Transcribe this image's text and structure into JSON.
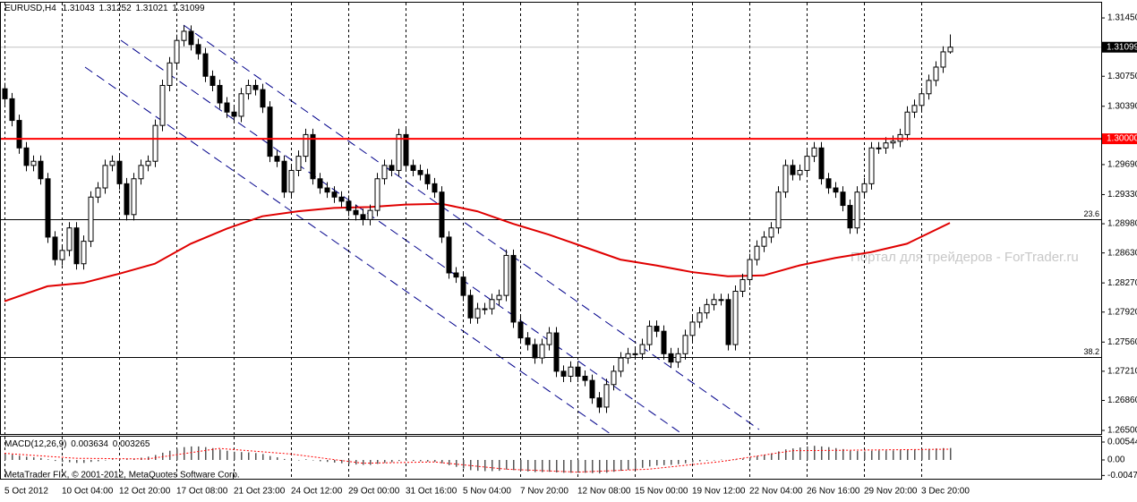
{
  "chart_data": [
    {
      "type": "candlestick",
      "title": "EURUSD,H4",
      "categories": [
        "5 Oct 2012",
        null,
        null,
        null,
        null,
        null,
        null,
        null,
        "10 Oct 04:00",
        null,
        null,
        null,
        null,
        null,
        null,
        null,
        "12 Oct 20:00",
        null,
        null,
        null,
        null,
        null,
        null,
        null,
        "17 Oct 08:00",
        null,
        null,
        null,
        null,
        null,
        null,
        null,
        "21 Oct 23:00",
        null,
        null,
        null,
        null,
        null,
        null,
        null,
        "24 Oct 12:00",
        null,
        null,
        null,
        null,
        null,
        null,
        null,
        "29 Oct 00:00",
        null,
        null,
        null,
        null,
        null,
        null,
        null,
        "31 Oct 16:00",
        null,
        null,
        null,
        null,
        null,
        null,
        null,
        "5 Nov 04:00",
        null,
        null,
        null,
        null,
        null,
        null,
        null,
        "7 Nov 20:00",
        null,
        null,
        null,
        null,
        null,
        null,
        null,
        "12 Nov 08:00",
        null,
        null,
        null,
        null,
        null,
        null,
        null,
        "15 Nov 00:00",
        null,
        null,
        null,
        null,
        null,
        null,
        null,
        "19 Nov 12:00",
        null,
        null,
        null,
        null,
        null,
        null,
        null,
        "22 Nov 04:00",
        null,
        null,
        null,
        null,
        null,
        null,
        null,
        "26 Nov 16:00",
        null,
        null,
        null,
        null,
        null,
        null,
        null,
        "29 Nov 20:00",
        null,
        null,
        null,
        null,
        null,
        null,
        null,
        "3 Dec 20:00",
        null,
        null,
        null,
        null
      ],
      "open": [
        1.306,
        1.3048,
        1.3022,
        1.2989,
        1.2968,
        1.2973,
        1.2952,
        1.2882,
        1.2855,
        1.2866,
        1.2893,
        1.285,
        1.2877,
        1.293,
        1.2941,
        1.2968,
        1.2973,
        1.2946,
        1.2909,
        1.2952,
        1.2968,
        1.2973,
        1.3016,
        1.3064,
        1.3091,
        1.3118,
        1.3129,
        1.3113,
        1.3102,
        1.3075,
        1.3064,
        1.3043,
        1.3032,
        1.3027,
        1.3054,
        1.3064,
        1.3059,
        1.3038,
        1.2979,
        1.2973,
        1.2936,
        1.2962,
        1.2979,
        1.3005,
        1.2952,
        1.2941,
        1.2936,
        1.293,
        1.2925,
        1.2914,
        1.2909,
        1.2903,
        1.2914,
        1.2952,
        1.2968,
        1.2962,
        1.3005,
        1.2968,
        1.2962,
        1.2957,
        1.2946,
        1.2936,
        1.2882,
        1.2839,
        1.2834,
        1.2812,
        1.2785,
        1.2796,
        1.2796,
        1.2807,
        1.2812,
        1.286,
        1.278,
        1.2761,
        1.2753,
        1.2737,
        1.2753,
        1.2767,
        1.2721,
        1.2715,
        1.2726,
        1.2715,
        1.271,
        1.2689,
        1.2678,
        1.2705,
        1.2721,
        1.2737,
        1.2742,
        1.2742,
        1.2753,
        1.2775,
        1.2769,
        1.2742,
        1.2732,
        1.2742,
        1.2764,
        1.278,
        1.2791,
        1.2801,
        1.2807,
        1.2807,
        1.2753,
        1.2817,
        1.2831,
        1.2855,
        1.2871,
        1.2882,
        1.2893,
        1.2936,
        1.2968,
        1.2957,
        1.2962,
        1.2979,
        1.2989,
        1.2952,
        1.2941,
        1.2936,
        1.292,
        1.2893,
        1.2936,
        1.2946,
        1.2989,
        1.2989,
        1.2995,
        1.2997,
        1.3005,
        1.3032,
        1.304,
        1.3054,
        1.307,
        1.3086,
        1.31043
      ],
      "high": [
        1.3067,
        1.3055,
        1.3029,
        1.2996,
        1.298,
        1.298,
        1.2959,
        1.2889,
        1.2873,
        1.29,
        1.29,
        1.2884,
        1.2937,
        1.2948,
        1.2975,
        1.298,
        1.298,
        1.2953,
        1.2959,
        1.2975,
        1.298,
        1.3023,
        1.3071,
        1.3098,
        1.3125,
        1.3136,
        1.3136,
        1.312,
        1.3109,
        1.3082,
        1.3071,
        1.305,
        1.3039,
        1.3061,
        1.3071,
        1.3071,
        1.3066,
        1.3045,
        1.2986,
        1.298,
        1.2969,
        1.2986,
        1.3012,
        1.3012,
        1.2959,
        1.2948,
        1.2943,
        1.2937,
        1.2932,
        1.2921,
        1.2916,
        1.2921,
        1.2959,
        1.2975,
        1.2975,
        1.3012,
        1.3012,
        1.2975,
        1.2969,
        1.2964,
        1.2953,
        1.2943,
        1.2889,
        1.2846,
        1.2841,
        1.2819,
        1.2803,
        1.2803,
        1.2814,
        1.2819,
        1.2867,
        1.2867,
        1.2787,
        1.2768,
        1.276,
        1.276,
        1.2774,
        1.2774,
        1.2728,
        1.2733,
        1.2733,
        1.2722,
        1.2717,
        1.2696,
        1.2712,
        1.2728,
        1.2744,
        1.2749,
        1.2749,
        1.276,
        1.2782,
        1.2782,
        1.2776,
        1.2749,
        1.2749,
        1.2771,
        1.2787,
        1.2798,
        1.2808,
        1.2814,
        1.2814,
        1.2814,
        1.2824,
        1.2838,
        1.2862,
        1.2878,
        1.2889,
        1.29,
        1.2943,
        1.2975,
        1.2975,
        1.2969,
        1.2986,
        1.2996,
        1.2996,
        1.2959,
        1.2948,
        1.2943,
        1.2927,
        1.2943,
        1.2953,
        1.2996,
        1.2996,
        1.3002,
        1.3004,
        1.3012,
        1.3039,
        1.3047,
        1.3061,
        1.3077,
        1.3093,
        1.3111,
        1.31252
      ],
      "low": [
        1.3041,
        1.3015,
        1.2982,
        1.2961,
        1.2961,
        1.2945,
        1.2875,
        1.2848,
        1.2848,
        1.2859,
        1.2843,
        1.2843,
        1.287,
        1.2923,
        1.2934,
        1.2961,
        1.2939,
        1.2902,
        1.2902,
        1.2945,
        1.2961,
        1.2966,
        1.3009,
        1.3057,
        1.3084,
        1.3111,
        1.3106,
        1.3095,
        1.3068,
        1.3057,
        1.3036,
        1.3025,
        1.302,
        1.302,
        1.3047,
        1.3052,
        1.3031,
        1.2972,
        1.2966,
        1.2929,
        1.2929,
        1.2955,
        1.2972,
        1.2945,
        1.2934,
        1.2929,
        1.2923,
        1.2918,
        1.2907,
        1.2902,
        1.2896,
        1.2896,
        1.2907,
        1.2945,
        1.2955,
        1.2955,
        1.2961,
        1.2955,
        1.295,
        1.2939,
        1.2929,
        1.2875,
        1.2832,
        1.2827,
        1.2805,
        1.2778,
        1.2778,
        1.2789,
        1.2789,
        1.28,
        1.2805,
        1.2773,
        1.2754,
        1.2746,
        1.273,
        1.273,
        1.2746,
        1.2714,
        1.2708,
        1.2708,
        1.2708,
        1.2703,
        1.2682,
        1.2671,
        1.2671,
        1.2698,
        1.2714,
        1.273,
        1.2735,
        1.2735,
        1.2746,
        1.2762,
        1.2735,
        1.2725,
        1.2725,
        1.2735,
        1.2757,
        1.2773,
        1.2784,
        1.2794,
        1.28,
        1.2746,
        1.2746,
        1.281,
        1.2824,
        1.2848,
        1.2864,
        1.2875,
        1.2886,
        1.2929,
        1.295,
        1.295,
        1.2955,
        1.2972,
        1.2945,
        1.2934,
        1.2929,
        1.2913,
        1.2886,
        1.2886,
        1.2929,
        1.2939,
        1.2982,
        1.2982,
        1.2988,
        1.299,
        1.2998,
        1.3025,
        1.3033,
        1.3047,
        1.3063,
        1.3079,
        1.31021
      ],
      "close": [
        1.3048,
        1.3022,
        1.2989,
        1.2968,
        1.2973,
        1.2952,
        1.2882,
        1.2855,
        1.2866,
        1.2893,
        1.285,
        1.2877,
        1.293,
        1.2941,
        1.2968,
        1.2973,
        1.2946,
        1.2909,
        1.2952,
        1.2968,
        1.2973,
        1.3016,
        1.3064,
        1.3091,
        1.3118,
        1.3129,
        1.3113,
        1.3102,
        1.3075,
        1.3064,
        1.3043,
        1.3032,
        1.3027,
        1.3054,
        1.3064,
        1.3059,
        1.3038,
        1.2979,
        1.2973,
        1.2936,
        1.2962,
        1.2979,
        1.3005,
        1.2952,
        1.2941,
        1.2936,
        1.293,
        1.2925,
        1.2914,
        1.2909,
        1.2903,
        1.2914,
        1.2952,
        1.2968,
        1.2962,
        1.3005,
        1.2968,
        1.2962,
        1.2957,
        1.2946,
        1.2936,
        1.2882,
        1.2839,
        1.2834,
        1.2812,
        1.2785,
        1.2796,
        1.2796,
        1.2807,
        1.2812,
        1.286,
        1.278,
        1.2761,
        1.2753,
        1.2737,
        1.2753,
        1.2767,
        1.2721,
        1.2715,
        1.2726,
        1.2715,
        1.271,
        1.2689,
        1.2678,
        1.2705,
        1.2721,
        1.2737,
        1.2742,
        1.2742,
        1.2753,
        1.2775,
        1.2769,
        1.2742,
        1.2732,
        1.2742,
        1.2764,
        1.278,
        1.2791,
        1.2801,
        1.2807,
        1.2807,
        1.2753,
        1.2817,
        1.2831,
        1.2855,
        1.2871,
        1.2882,
        1.2893,
        1.2936,
        1.2968,
        1.2957,
        1.2962,
        1.2979,
        1.2989,
        1.2952,
        1.2941,
        1.2936,
        1.292,
        1.2893,
        1.2936,
        1.2946,
        1.2989,
        1.2989,
        1.2995,
        1.2997,
        1.3005,
        1.3032,
        1.304,
        1.3054,
        1.307,
        1.3086,
        1.31043,
        1.31099
      ],
      "up_color": "#ffffff",
      "down_color": "#000000",
      "grid": true,
      "ylim": [
        1.26457,
        1.31633
      ],
      "yticks": [
        {
          "value": 1.3145,
          "label": "1.31450"
        },
        {
          "value": 1.3075,
          "label": "1.30750"
        },
        {
          "value": 1.3039,
          "label": "1.30390"
        },
        {
          "value": 1.2969,
          "label": "1.29690"
        },
        {
          "value": 1.2933,
          "label": "1.29330"
        },
        {
          "value": 1.2898,
          "label": "1.28980"
        },
        {
          "value": 1.2863,
          "label": "1.28630"
        },
        {
          "value": 1.2827,
          "label": "1.28270"
        },
        {
          "value": 1.2792,
          "label": "1.27920"
        },
        {
          "value": 1.2756,
          "label": "1.27560"
        },
        {
          "value": 1.2721,
          "label": "1.27210"
        },
        {
          "value": 1.2686,
          "label": "1.26860"
        },
        {
          "value": 1.265,
          "label": "1.26500"
        }
      ],
      "moving_average": {
        "color": "#e00000",
        "x": [
          0,
          6,
          11,
          16,
          21,
          26,
          31,
          36,
          41,
          46,
          51,
          56,
          61,
          66,
          71,
          76,
          81,
          86,
          91,
          96,
          101,
          106,
          111,
          116,
          121,
          126,
          132
        ],
        "values": [
          1.2805,
          1.2823,
          1.2827,
          1.2838,
          1.285,
          1.2874,
          1.2892,
          1.2907,
          1.2913,
          1.2917,
          1.2918,
          1.2921,
          1.2922,
          1.2913,
          1.2898,
          1.2885,
          1.287,
          1.2855,
          1.2848,
          1.284,
          1.2835,
          1.2836,
          1.2848,
          1.2857,
          1.2864,
          1.2874,
          1.2899
        ]
      },
      "levels": [
        {
          "value": 1.3,
          "label": "1.30000",
          "color": "#ff0000"
        }
      ],
      "fibonacci": [
        {
          "level": 23.6,
          "price": 1.2903
        },
        {
          "level": 38.2,
          "price": 1.2738
        }
      ],
      "watermark": "Портал для трейдеров - ForTrader.ru",
      "footer": "MetaTrader FIX, © 2001-2012, MetaQuotes Software Corp."
    },
    {
      "type": "macd",
      "title": "MACD(12,26,9)",
      "color": "#555555",
      "values": [
        0.0018,
        0.0016,
        0.0013,
        0.001,
        0.0008,
        0.0006,
        0.0002,
        -0.0003,
        -0.0006,
        -0.0007,
        -0.0009,
        -0.0009,
        -0.0006,
        -0.0004,
        -0.0001,
        0.0002,
        0.0003,
        0.0002,
        0.0004,
        0.0007,
        0.001,
        0.0015,
        0.0022,
        0.0028,
        0.0034,
        0.0039,
        0.0041,
        0.0041,
        0.0039,
        0.0036,
        0.0032,
        0.0028,
        0.0025,
        0.0024,
        0.0023,
        0.0021,
        0.0018,
        0.0012,
        0.0008,
        0.0003,
        0.0001,
        0.0,
        0.0002,
        -0.0001,
        -0.0004,
        -0.0006,
        -0.0008,
        -0.001,
        -0.0012,
        -0.0014,
        -0.0015,
        -0.0015,
        -0.0012,
        -0.0009,
        -0.0007,
        -0.0003,
        -0.0003,
        -0.0003,
        -0.0004,
        -0.0005,
        -0.0006,
        -0.001,
        -0.0016,
        -0.0021,
        -0.0026,
        -0.0031,
        -0.0033,
        -0.0034,
        -0.0034,
        -0.0033,
        -0.0029,
        -0.0031,
        -0.0033,
        -0.0035,
        -0.0037,
        -0.0037,
        -0.0036,
        -0.0038,
        -0.0039,
        -0.0039,
        -0.0039,
        -0.0039,
        -0.004,
        -0.0041,
        -0.0039,
        -0.0036,
        -0.0033,
        -0.003,
        -0.0027,
        -0.0024,
        -0.002,
        -0.0017,
        -0.0016,
        -0.0015,
        -0.0013,
        -0.001,
        -0.0007,
        -0.0004,
        -0.0002,
        0.0,
        0.0001,
        -0.0001,
        0.0001,
        0.0004,
        0.0008,
        0.0012,
        0.0016,
        0.002,
        0.0026,
        0.0032,
        0.0035,
        0.0038,
        0.0041,
        0.0043,
        0.0041,
        0.0039,
        0.0036,
        0.0033,
        0.0028,
        0.0027,
        0.0026,
        0.0028,
        0.0029,
        0.0029,
        0.0029,
        0.003,
        0.0031,
        0.0032,
        0.0033,
        0.0034,
        0.0035,
        0.0036,
        0.003634
      ],
      "signal": {
        "color": "#ff0000",
        "x": [
          0,
          10,
          20,
          30,
          40,
          50,
          60,
          70,
          80,
          90,
          100,
          110,
          120,
          132
        ],
        "values": [
          0.002,
          0.0005,
          0.0003,
          0.0035,
          0.0018,
          -0.001,
          -0.0006,
          -0.0028,
          -0.0037,
          -0.0028,
          -0.0005,
          0.0028,
          0.003,
          0.003265
        ]
      },
      "ylim": [
        -0.00544,
        0.0068
      ],
      "yticks": [
        0.00544,
        {
          "value": 0,
          "label": "0.00"
        },
        -0.00472
      ]
    }
  ]
}
